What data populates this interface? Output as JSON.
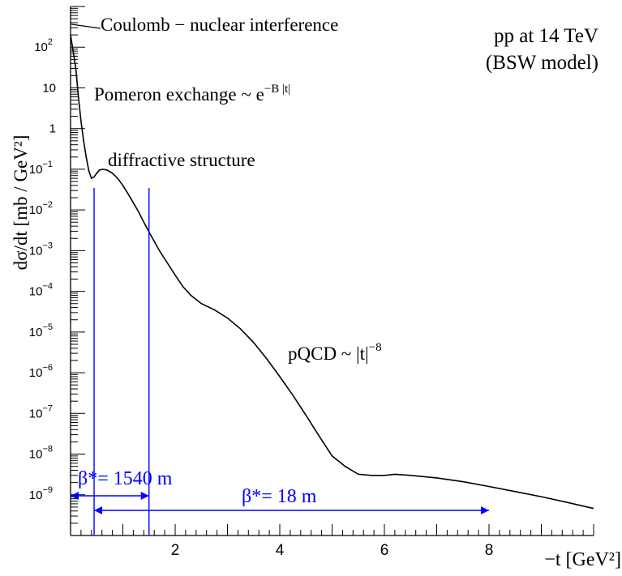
{
  "chart_data": {
    "type": "line",
    "title": "pp at 14 TeV",
    "subtitle": "(BSW model)",
    "xlabel": "−t [GeV²]",
    "ylabel": "dσ/dt [mb / GeV²]",
    "xlim": [
      0,
      10
    ],
    "ylim_log10": [
      -10,
      3
    ],
    "yscale": "log",
    "grid": false,
    "x_ticks": [
      {
        "value": 2,
        "label": "2"
      },
      {
        "value": 4,
        "label": "4"
      },
      {
        "value": 6,
        "label": "6"
      },
      {
        "value": 8,
        "label": "8"
      }
    ],
    "y_ticks": [
      {
        "exp": 2,
        "base": "10",
        "sup": "2"
      },
      {
        "exp": 1,
        "base": "10",
        "sup": ""
      },
      {
        "exp": 0,
        "base": "1",
        "sup": ""
      },
      {
        "exp": -1,
        "base": "10",
        "sup": "−1"
      },
      {
        "exp": -2,
        "base": "10",
        "sup": "−2"
      },
      {
        "exp": -3,
        "base": "10",
        "sup": "−3"
      },
      {
        "exp": -4,
        "base": "10",
        "sup": "−4"
      },
      {
        "exp": -5,
        "base": "10",
        "sup": "−5"
      },
      {
        "exp": -6,
        "base": "10",
        "sup": "−6"
      },
      {
        "exp": -7,
        "base": "10",
        "sup": "−7"
      },
      {
        "exp": -8,
        "base": "10",
        "sup": "−8"
      },
      {
        "exp": -9,
        "base": "10",
        "sup": "−9"
      }
    ],
    "series": [
      {
        "color": "#000000",
        "points": [
          [
            0.0,
            200
          ],
          [
            0.05,
            80
          ],
          [
            0.1,
            30
          ],
          [
            0.15,
            6
          ],
          [
            0.2,
            1.5
          ],
          [
            0.25,
            0.5
          ],
          [
            0.3,
            0.2
          ],
          [
            0.35,
            0.09
          ],
          [
            0.4,
            0.06
          ],
          [
            0.45,
            0.065
          ],
          [
            0.5,
            0.08
          ],
          [
            0.55,
            0.095
          ],
          [
            0.62,
            0.1
          ],
          [
            0.7,
            0.095
          ],
          [
            0.8,
            0.08
          ],
          [
            0.9,
            0.06
          ],
          [
            1.0,
            0.04
          ],
          [
            1.1,
            0.025
          ],
          [
            1.2,
            0.015
          ],
          [
            1.3,
            0.009
          ],
          [
            1.4,
            0.005
          ],
          [
            1.55,
            0.0022
          ],
          [
            1.7,
            0.001
          ],
          [
            1.85,
            0.0005
          ],
          [
            2.0,
            0.00025
          ],
          [
            2.15,
            0.00013
          ],
          [
            2.3,
            8e-05
          ],
          [
            2.5,
            5e-05
          ],
          [
            2.75,
            3.5e-05
          ],
          [
            3.0,
            2.2e-05
          ],
          [
            3.25,
            1.2e-05
          ],
          [
            3.5,
            5.5e-06
          ],
          [
            3.75,
            2.2e-06
          ],
          [
            4.0,
            8e-07
          ],
          [
            4.25,
            2.8e-07
          ],
          [
            4.5,
            9e-08
          ],
          [
            4.75,
            2.8e-08
          ],
          [
            5.0,
            9e-09
          ],
          [
            5.25,
            3e-09
          ],
          [
            5.5,
            1.1e-09
          ],
          [
            5.75,
            5e-10
          ],
          [
            6.0,
            2.8e-09
          ],
          [
            6.0,
            2.8e-09
          ]
        ]
      }
    ],
    "annotations": {
      "coulomb": "Coulomb − nuclear interference",
      "pomeron_base": "Pomeron exchange ~ e",
      "pomeron_sup": "−B |t|",
      "diffractive": "diffractive structure",
      "pqcd_base": "pQCD ~ |t|",
      "pqcd_sup": "−8"
    },
    "markers": {
      "color": "#0000ff",
      "vertical_lines_x": [
        0.45,
        1.5
      ],
      "beta_1540": {
        "label": "β*= 1540 m",
        "x_from": 0.0,
        "x_to": 1.5
      },
      "beta_18": {
        "label": "β*= 18 m",
        "x_from": 0.45,
        "x_to": 8.0
      }
    }
  }
}
